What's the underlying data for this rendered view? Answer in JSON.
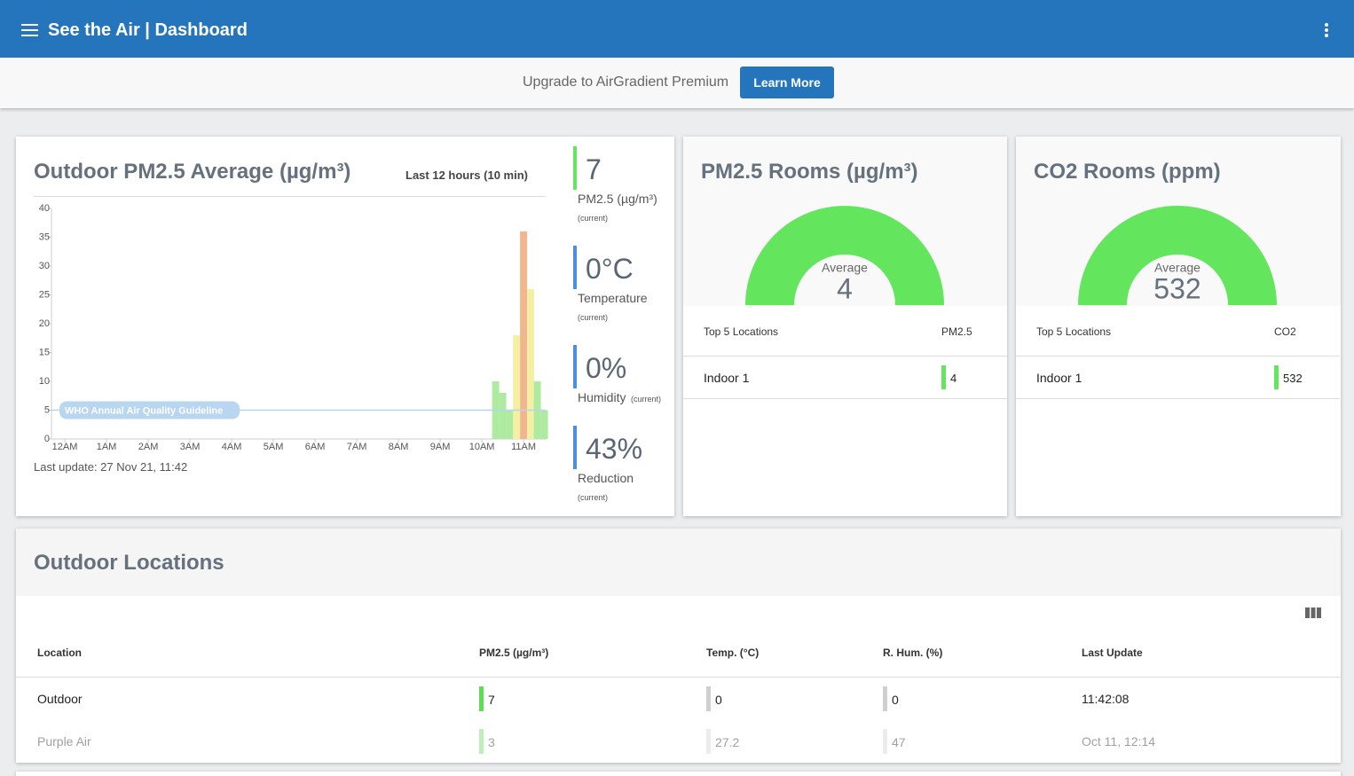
{
  "header": {
    "title": "See the Air | Dashboard"
  },
  "banner": {
    "text": "Upgrade to AirGradient Premium",
    "button": "Learn More"
  },
  "outdoor_card": {
    "title": "Outdoor PM2.5 Average (µg/m³)",
    "period": "Last 12 hours (10 min)",
    "chart": {
      "type": "bar",
      "x": [
        10.33,
        10.5,
        10.67,
        10.83,
        11,
        11.17,
        11.33,
        11.5
      ],
      "values": [
        10,
        8,
        5,
        18,
        36,
        26,
        10,
        5
      ],
      "colors": [
        "#aeeaa0",
        "#aeeaa0",
        "#aeeaa0",
        "#f3f0a4",
        "#f0b78e",
        "#f3f0a4",
        "#aeeaa0",
        "#aeeaa0"
      ],
      "xlim": [
        -0.32,
        11.53
      ],
      "xticks": [
        {
          "value": 0,
          "label": "12AM"
        },
        {
          "value": 1,
          "label": "1AM"
        },
        {
          "value": 2,
          "label": "2AM"
        },
        {
          "value": 3,
          "label": "3AM"
        },
        {
          "value": 4,
          "label": "4AM"
        },
        {
          "value": 5,
          "label": "5AM"
        },
        {
          "value": 6,
          "label": "6AM"
        },
        {
          "value": 7,
          "label": "7AM"
        },
        {
          "value": 8,
          "label": "8AM"
        },
        {
          "value": 9,
          "label": "9AM"
        },
        {
          "value": 10,
          "label": "10AM"
        },
        {
          "value": 11,
          "label": "11AM"
        }
      ],
      "ylim": [
        0,
        40
      ],
      "yticks": [
        0,
        5,
        10,
        15,
        20,
        25,
        30,
        35,
        40
      ],
      "guideline": {
        "value": 5,
        "label": "WHO Annual Air Quality Guideline"
      }
    },
    "last_update": "Last update: 27 Nov 21, 11:42",
    "stats": [
      {
        "value": "7",
        "label": "PM2.5 (µg/m³)",
        "note": "(current)",
        "color": "#63e55d"
      },
      {
        "value": "0°C",
        "label": "Temperature",
        "note": "(current)",
        "color": "#4a8fe0"
      },
      {
        "value": "0%",
        "label": "Humidity",
        "note": "(current)",
        "color": "#4a8fe0"
      },
      {
        "value": "43%",
        "label": "Reduction",
        "note": "(current)",
        "color": "#4a8fe0"
      }
    ]
  },
  "pm_rooms": {
    "title": "PM2.5 Rooms (µg/m³)",
    "average_label": "Average",
    "average": 4,
    "gauge_color": "#63e55d",
    "columns": [
      "Top 5 Locations",
      "PM2.5"
    ],
    "rows": [
      {
        "location": "Indoor 1",
        "value": 4,
        "color": "#63e55d"
      }
    ]
  },
  "co2_rooms": {
    "title": "CO2 Rooms (ppm)",
    "average_label": "Average",
    "average": 532,
    "gauge_color": "#63e55d",
    "columns": [
      "Top 5 Locations",
      "CO2"
    ],
    "rows": [
      {
        "location": "Indoor 1",
        "value": 532,
        "color": "#63e55d"
      }
    ]
  },
  "outdoor_locations": {
    "title": "Outdoor Locations",
    "columns": [
      "Location",
      "PM2.5 (µg/m³)",
      "Temp. (°C)",
      "R. Hum. (%)",
      "Last Update"
    ],
    "rows": [
      {
        "cells": [
          "Outdoor",
          7,
          0,
          0,
          "11:42:08"
        ],
        "text_color": "#222222",
        "indicator_colors": [
          "#5ddc55",
          "#cfcfcf",
          "#cfcfcf"
        ]
      },
      {
        "cells": [
          "Purple Air",
          3,
          27.2,
          47,
          "Oct 11, 12:14"
        ],
        "text_color": "#a0a0a0",
        "indicator_colors": [
          "#bdf0b8",
          "#ececec",
          "#ececec"
        ]
      }
    ]
  }
}
